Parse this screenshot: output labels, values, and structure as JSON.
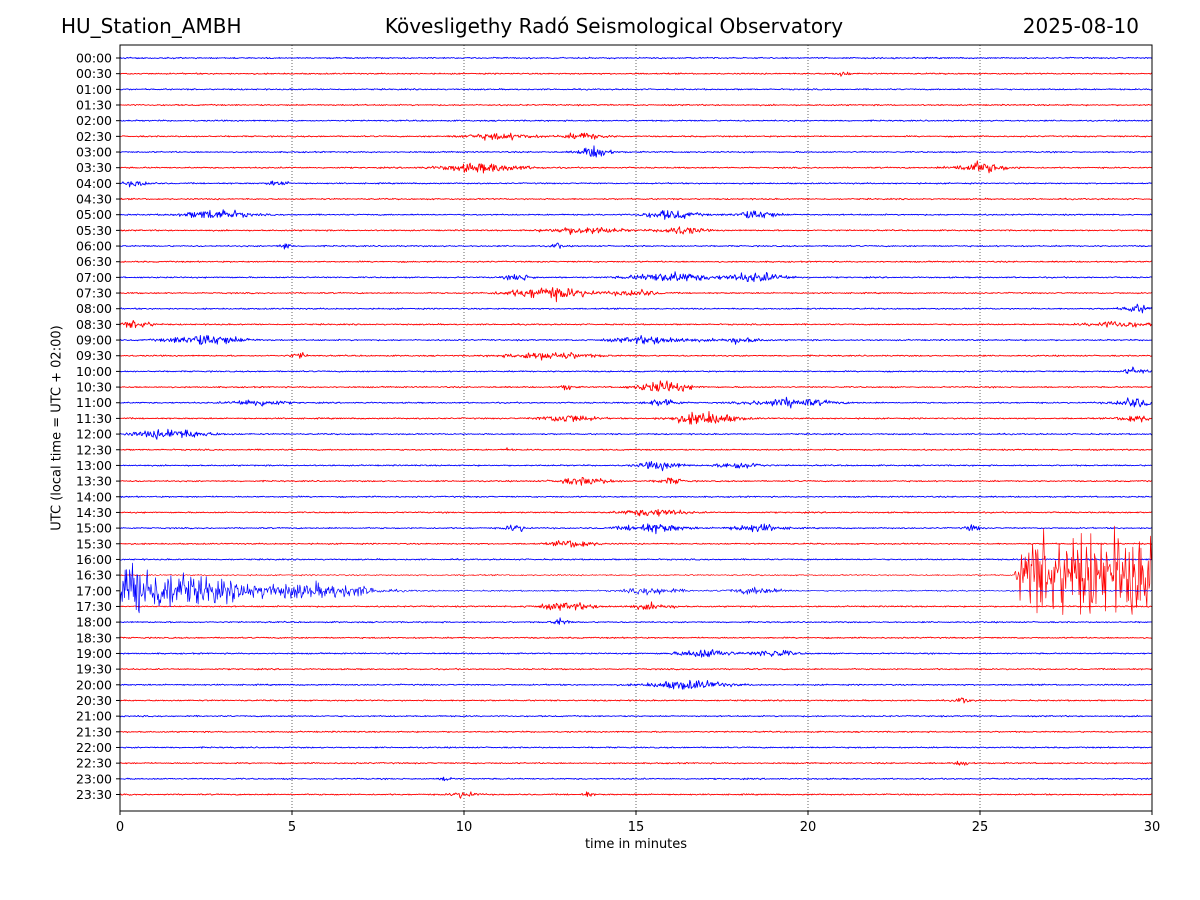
{
  "header": {
    "station": "HU_Station_AMBH",
    "observatory": "Kövesligethy Radó Seismological Observatory",
    "date": "2025-08-10"
  },
  "chart_data": {
    "type": "line",
    "title": "Kövesligethy Radó Seismological Observatory",
    "xlabel": "time in minutes",
    "ylabel": "UTC (local time = UTC + 02:00)",
    "xlim": [
      0,
      30
    ],
    "xticks": [
      "0",
      "5",
      "10",
      "15",
      "20",
      "25",
      "30"
    ],
    "x_grid": "dotted vertical lines at 5-minute ticks",
    "rows": [
      "00:00",
      "00:30",
      "01:00",
      "01:30",
      "02:00",
      "02:30",
      "03:00",
      "03:30",
      "04:00",
      "04:30",
      "05:00",
      "05:30",
      "06:00",
      "06:30",
      "07:00",
      "07:30",
      "08:00",
      "08:30",
      "09:00",
      "09:30",
      "10:00",
      "10:30",
      "11:00",
      "11:30",
      "12:00",
      "12:30",
      "13:00",
      "13:30",
      "14:00",
      "14:30",
      "15:00",
      "15:30",
      "16:00",
      "16:30",
      "17:00",
      "17:30",
      "18:00",
      "18:30",
      "19:00",
      "19:30",
      "20:00",
      "20:30",
      "21:00",
      "21:30",
      "22:00",
      "22:30",
      "23:00",
      "23:30"
    ],
    "trace_colors": [
      "#0000ff",
      "#ff0000"
    ],
    "colors_alternate_by_row": true,
    "base_noise_level": 0.18,
    "bursts": [
      {
        "row": "00:30",
        "t": 21.0,
        "amp": 0.6,
        "dur": 0.3
      },
      {
        "row": "02:30",
        "t": 11.0,
        "amp": 0.8,
        "dur": 1.4
      },
      {
        "row": "02:30",
        "t": 13.5,
        "amp": 0.9,
        "dur": 0.8
      },
      {
        "row": "03:00",
        "t": 13.8,
        "amp": 1.5,
        "dur": 0.6
      },
      {
        "row": "03:30",
        "t": 10.5,
        "amp": 1.2,
        "dur": 1.6
      },
      {
        "row": "03:30",
        "t": 25.0,
        "amp": 1.4,
        "dur": 1.0
      },
      {
        "row": "04:00",
        "t": 0.5,
        "amp": 0.8,
        "dur": 0.5
      },
      {
        "row": "04:00",
        "t": 4.6,
        "amp": 0.7,
        "dur": 0.4
      },
      {
        "row": "05:00",
        "t": 2.8,
        "amp": 1.3,
        "dur": 1.2
      },
      {
        "row": "05:00",
        "t": 16.0,
        "amp": 1.2,
        "dur": 1.0
      },
      {
        "row": "05:00",
        "t": 18.5,
        "amp": 1.2,
        "dur": 0.8
      },
      {
        "row": "05:30",
        "t": 13.5,
        "amp": 1.0,
        "dur": 1.4
      },
      {
        "row": "05:30",
        "t": 16.3,
        "amp": 1.1,
        "dur": 0.8
      },
      {
        "row": "06:00",
        "t": 4.8,
        "amp": 1.1,
        "dur": 0.2
      },
      {
        "row": "06:00",
        "t": 12.7,
        "amp": 0.9,
        "dur": 0.2
      },
      {
        "row": "07:00",
        "t": 11.6,
        "amp": 0.9,
        "dur": 0.5
      },
      {
        "row": "07:00",
        "t": 16.0,
        "amp": 1.3,
        "dur": 1.5
      },
      {
        "row": "07:00",
        "t": 18.5,
        "amp": 1.2,
        "dur": 1.2
      },
      {
        "row": "07:30",
        "t": 12.5,
        "amp": 1.6,
        "dur": 1.6
      },
      {
        "row": "07:30",
        "t": 15.0,
        "amp": 0.9,
        "dur": 0.8
      },
      {
        "row": "08:00",
        "t": 29.6,
        "amp": 1.0,
        "dur": 0.6
      },
      {
        "row": "08:30",
        "t": 0.5,
        "amp": 1.0,
        "dur": 0.6
      },
      {
        "row": "08:30",
        "t": 29.0,
        "amp": 0.8,
        "dur": 1.2
      },
      {
        "row": "09:00",
        "t": 2.5,
        "amp": 1.5,
        "dur": 1.4
      },
      {
        "row": "09:00",
        "t": 15.5,
        "amp": 1.0,
        "dur": 1.5
      },
      {
        "row": "09:00",
        "t": 18.0,
        "amp": 0.8,
        "dur": 0.8
      },
      {
        "row": "09:30",
        "t": 5.2,
        "amp": 0.8,
        "dur": 0.3
      },
      {
        "row": "09:30",
        "t": 12.5,
        "amp": 1.0,
        "dur": 1.6
      },
      {
        "row": "10:00",
        "t": 29.5,
        "amp": 1.0,
        "dur": 0.4
      },
      {
        "row": "10:30",
        "t": 15.8,
        "amp": 1.6,
        "dur": 1.0
      },
      {
        "row": "10:30",
        "t": 13.0,
        "amp": 0.7,
        "dur": 0.3
      },
      {
        "row": "11:00",
        "t": 4.0,
        "amp": 0.9,
        "dur": 1.0
      },
      {
        "row": "11:00",
        "t": 15.8,
        "amp": 1.1,
        "dur": 0.6
      },
      {
        "row": "11:00",
        "t": 19.5,
        "amp": 1.2,
        "dur": 1.5
      },
      {
        "row": "11:00",
        "t": 29.5,
        "amp": 1.3,
        "dur": 0.8
      },
      {
        "row": "11:30",
        "t": 13.0,
        "amp": 1.1,
        "dur": 1.0
      },
      {
        "row": "11:30",
        "t": 17.0,
        "amp": 1.8,
        "dur": 1.2
      },
      {
        "row": "11:30",
        "t": 29.5,
        "amp": 1.0,
        "dur": 0.6
      },
      {
        "row": "12:00",
        "t": 1.5,
        "amp": 1.3,
        "dur": 1.4
      },
      {
        "row": "12:30",
        "t": 11.3,
        "amp": 0.8,
        "dur": 0.1
      },
      {
        "row": "13:00",
        "t": 15.7,
        "amp": 1.1,
        "dur": 0.8
      },
      {
        "row": "13:00",
        "t": 18.0,
        "amp": 1.0,
        "dur": 0.8
      },
      {
        "row": "13:30",
        "t": 13.5,
        "amp": 1.0,
        "dur": 1.0
      },
      {
        "row": "13:30",
        "t": 16.0,
        "amp": 0.8,
        "dur": 0.5
      },
      {
        "row": "14:30",
        "t": 15.5,
        "amp": 1.0,
        "dur": 1.2
      },
      {
        "row": "15:00",
        "t": 11.5,
        "amp": 1.0,
        "dur": 0.4
      },
      {
        "row": "15:00",
        "t": 15.5,
        "amp": 1.2,
        "dur": 1.2
      },
      {
        "row": "15:00",
        "t": 18.5,
        "amp": 1.0,
        "dur": 1.0
      },
      {
        "row": "15:00",
        "t": 24.8,
        "amp": 0.8,
        "dur": 0.3
      },
      {
        "row": "15:30",
        "t": 13.2,
        "amp": 1.0,
        "dur": 0.8
      },
      {
        "row": "17:00",
        "t": 6.0,
        "amp": 1.2,
        "dur": 2.0
      },
      {
        "row": "17:00",
        "t": 15.5,
        "amp": 1.0,
        "dur": 1.0
      },
      {
        "row": "17:00",
        "t": 18.5,
        "amp": 0.9,
        "dur": 1.0
      },
      {
        "row": "17:30",
        "t": 13.0,
        "amp": 0.9,
        "dur": 1.2
      },
      {
        "row": "17:30",
        "t": 15.5,
        "amp": 0.8,
        "dur": 0.8
      },
      {
        "row": "18:00",
        "t": 12.8,
        "amp": 1.0,
        "dur": 0.3
      },
      {
        "row": "19:00",
        "t": 17.0,
        "amp": 1.2,
        "dur": 1.0
      },
      {
        "row": "19:00",
        "t": 19.0,
        "amp": 1.0,
        "dur": 0.8
      },
      {
        "row": "20:00",
        "t": 16.5,
        "amp": 1.2,
        "dur": 1.5
      },
      {
        "row": "20:30",
        "t": 24.5,
        "amp": 0.7,
        "dur": 0.3
      },
      {
        "row": "22:30",
        "t": 24.5,
        "amp": 0.6,
        "dur": 0.3
      },
      {
        "row": "23:00",
        "t": 9.5,
        "amp": 0.8,
        "dur": 0.2
      },
      {
        "row": "23:30",
        "t": 10.0,
        "amp": 0.8,
        "dur": 0.5
      },
      {
        "row": "23:30",
        "t": 13.6,
        "amp": 0.7,
        "dur": 0.2
      }
    ],
    "large_events": [
      {
        "row": "17:00",
        "t_start": 0.0,
        "t_end": 7.5,
        "peak_amp": 12.0,
        "color": "#0000ff"
      },
      {
        "row": "16:30",
        "t_start": 26.0,
        "t_end": 30.0,
        "peak_amp": 13.0,
        "color": "#ff0000"
      }
    ]
  }
}
